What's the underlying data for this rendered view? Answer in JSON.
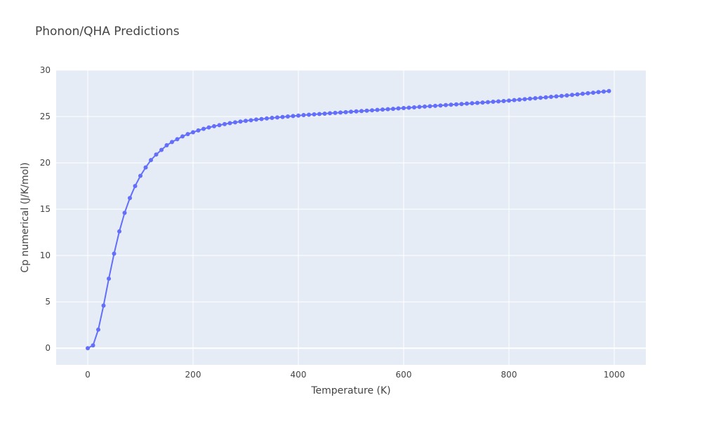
{
  "chart_data": {
    "type": "line",
    "title": "Phonon/QHA Predictions",
    "xlabel": "Temperature (K)",
    "ylabel": "Cp numerical (J/K/mol)",
    "xlim": [
      -60,
      1060
    ],
    "ylim": [
      -1.8,
      30
    ],
    "xticks": [
      0,
      200,
      400,
      600,
      800,
      1000
    ],
    "yticks": [
      0,
      5,
      10,
      15,
      20,
      25,
      30
    ],
    "grid": true,
    "legend": "none",
    "colors": {
      "series": "#636efa",
      "plot_bg": "#e5ecf6",
      "grid": "#ffffff",
      "text": "#444444"
    },
    "series": [
      {
        "mode": "lines+markers",
        "x": [
          0,
          10,
          20,
          30,
          40,
          50,
          60,
          70,
          80,
          90,
          100,
          110,
          120,
          130,
          140,
          150,
          160,
          170,
          180,
          190,
          200,
          210,
          220,
          230,
          240,
          250,
          260,
          270,
          280,
          290,
          300,
          310,
          320,
          330,
          340,
          350,
          360,
          370,
          380,
          390,
          400,
          410,
          420,
          430,
          440,
          450,
          460,
          470,
          480,
          490,
          500,
          510,
          520,
          530,
          540,
          550,
          560,
          570,
          580,
          590,
          600,
          610,
          620,
          630,
          640,
          650,
          660,
          670,
          680,
          690,
          700,
          710,
          720,
          730,
          740,
          750,
          760,
          770,
          780,
          790,
          800,
          810,
          820,
          830,
          840,
          850,
          860,
          870,
          880,
          890,
          900,
          910,
          920,
          930,
          940,
          950,
          960,
          970,
          980,
          990
        ],
        "y": [
          0,
          0.3,
          2.0,
          4.6,
          7.5,
          10.2,
          12.6,
          14.6,
          16.2,
          17.5,
          18.6,
          19.5,
          20.3,
          20.9,
          21.4,
          21.9,
          22.25,
          22.55,
          22.85,
          23.1,
          23.3,
          23.5,
          23.67,
          23.82,
          23.95,
          24.07,
          24.18,
          24.28,
          24.37,
          24.45,
          24.53,
          24.6,
          24.67,
          24.73,
          24.79,
          24.85,
          24.9,
          24.95,
          25.0,
          25.05,
          25.1,
          25.15,
          25.19,
          25.23,
          25.27,
          25.31,
          25.35,
          25.39,
          25.43,
          25.47,
          25.51,
          25.55,
          25.59,
          25.63,
          25.67,
          25.71,
          25.75,
          25.79,
          25.83,
          25.87,
          25.91,
          25.95,
          25.99,
          26.03,
          26.07,
          26.11,
          26.15,
          26.19,
          26.23,
          26.27,
          26.31,
          26.35,
          26.39,
          26.43,
          26.47,
          26.51,
          26.55,
          26.59,
          26.63,
          26.67,
          26.72,
          26.77,
          26.82,
          26.87,
          26.92,
          26.97,
          27.02,
          27.07,
          27.12,
          27.17,
          27.22,
          27.27,
          27.33,
          27.39,
          27.45,
          27.51,
          27.57,
          27.63,
          27.69,
          27.75
        ]
      }
    ]
  }
}
